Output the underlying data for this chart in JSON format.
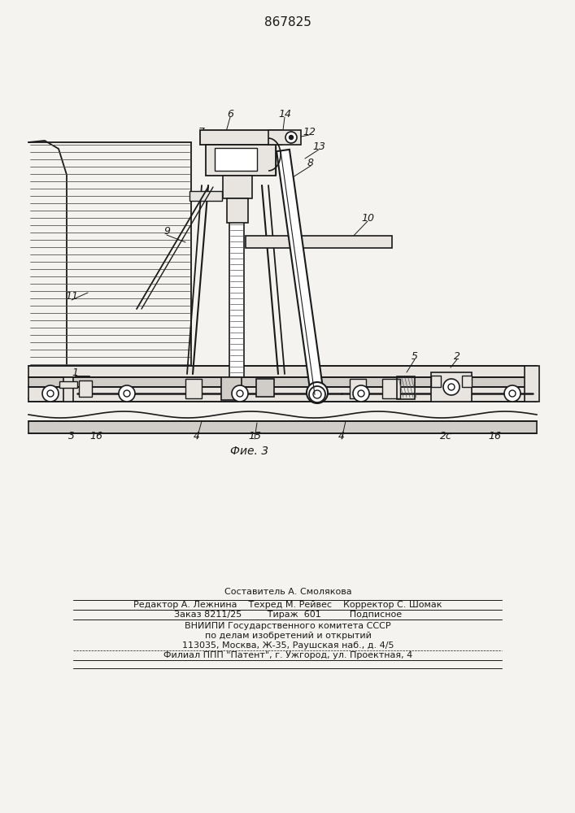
{
  "patent_number": "867825",
  "fig_label": "Фие. 3",
  "bg": "#f5f3ef",
  "lc": "#1a1a1a",
  "footer": {
    "l1": "Составитель А. Смолякова",
    "l2": "Редактор А. Лежнина    Техред М. Рейвес    Корректор С. Шомак",
    "l3": "Заказ 8211/25         Тираж  601          Подписное",
    "l4": "ВНИИПИ Государственного комитета СССР",
    "l5": "по делам изобретений и открытий",
    "l6": "113035, Москва, Ж-35, Раушская наб., д. 4/5",
    "l7": "Филиал ППП \"Патент\", г. Ужгород, ул. Проектная, 4"
  }
}
